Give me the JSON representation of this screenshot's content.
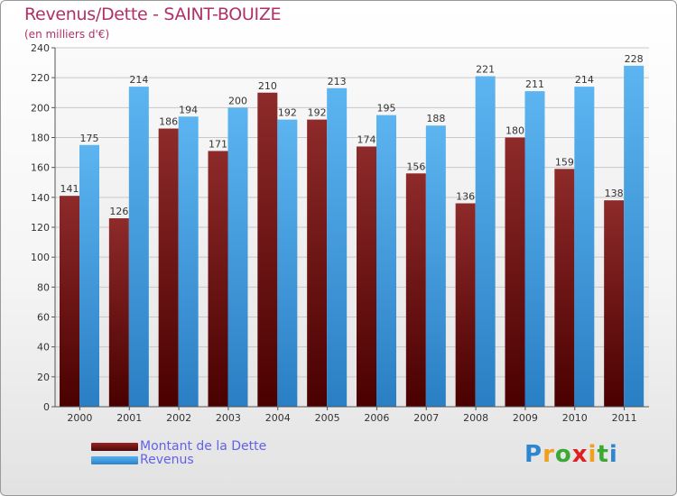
{
  "chart_data": {
    "type": "bar",
    "title": "Revenus/Dette - SAINT-BOUIZE",
    "subtitle": "(en milliers d'€)",
    "categories": [
      "2000",
      "2001",
      "2002",
      "2003",
      "2004",
      "2005",
      "2006",
      "2007",
      "2008",
      "2009",
      "2010",
      "2011"
    ],
    "series": [
      {
        "name": "Montant de la Dette",
        "color": "#8b1a1a",
        "values": [
          141,
          126,
          186,
          171,
          210,
          192,
          174,
          156,
          136,
          180,
          159,
          138
        ]
      },
      {
        "name": "Revenus",
        "color": "#3d9be0",
        "values": [
          175,
          214,
          194,
          200,
          192,
          213,
          195,
          188,
          221,
          211,
          214,
          228
        ]
      }
    ],
    "ylim": [
      0,
      240
    ],
    "yticks": [
      0,
      20,
      40,
      60,
      80,
      100,
      120,
      140,
      160,
      180,
      200,
      220,
      240
    ],
    "grid": true,
    "legend_position": "bottom-left"
  },
  "logo": {
    "letters": [
      "P",
      "r",
      "o",
      "x",
      "i",
      "t",
      "i"
    ],
    "colors": [
      "#2f86d0",
      "#f0a020",
      "#3aaa35",
      "#e02020",
      "#f0a020",
      "#3aaa35",
      "#2f86d0"
    ]
  }
}
